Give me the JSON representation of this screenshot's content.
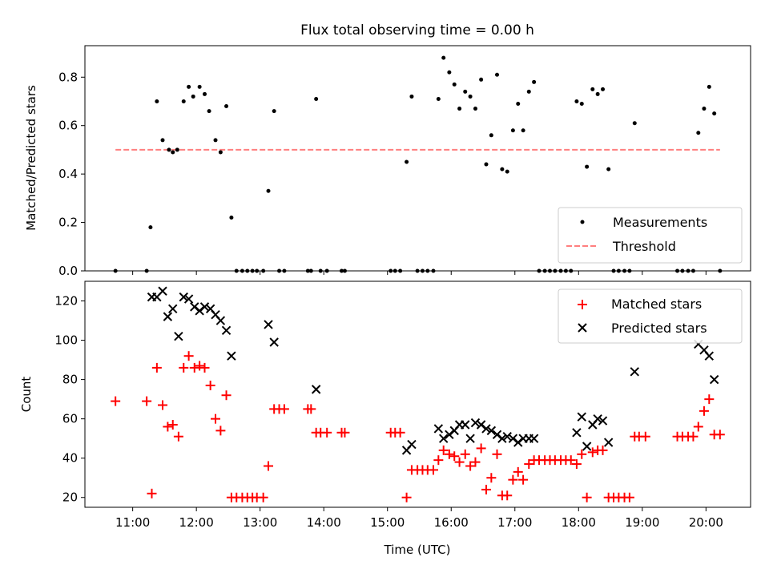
{
  "chart_data": [
    {
      "type": "scatter",
      "title": "Flux total observing time = 0.00 h",
      "ylabel": "Matched/Predicted stars",
      "xlabel": "",
      "ylim": [
        0,
        0.93
      ],
      "yticks": [
        "0.0",
        "0.2",
        "0.4",
        "0.6",
        "0.8"
      ],
      "ytick_values": [
        0,
        0.2,
        0.4,
        0.6,
        0.8
      ],
      "legend": {
        "placement": "lower-right",
        "entries": [
          "Measurements",
          "Threshold"
        ]
      },
      "threshold": {
        "name": "Threshold",
        "value": 0.5,
        "x_range": [
          10.73,
          20.22
        ],
        "color": "#ff7f7f"
      },
      "series": [
        {
          "name": "Measurements",
          "color": "#000000",
          "points": [
            [
              10.73,
              0
            ],
            [
              11.22,
              0
            ],
            [
              11.28,
              0.18
            ],
            [
              11.38,
              0.7
            ],
            [
              11.47,
              0.54
            ],
            [
              11.57,
              0.5
            ],
            [
              11.63,
              0.49
            ],
            [
              11.7,
              0.5
            ],
            [
              11.8,
              0.7
            ],
            [
              11.88,
              0.76
            ],
            [
              11.95,
              0.72
            ],
            [
              12.05,
              0.76
            ],
            [
              12.13,
              0.73
            ],
            [
              12.2,
              0.66
            ],
            [
              12.3,
              0.54
            ],
            [
              12.38,
              0.49
            ],
            [
              12.47,
              0.68
            ],
            [
              12.55,
              0.22
            ],
            [
              12.63,
              0
            ],
            [
              12.72,
              0
            ],
            [
              12.8,
              0
            ],
            [
              12.88,
              0
            ],
            [
              12.95,
              0
            ],
            [
              13.05,
              0
            ],
            [
              13.13,
              0.33
            ],
            [
              13.22,
              0.66
            ],
            [
              13.3,
              0
            ],
            [
              13.38,
              0
            ],
            [
              13.75,
              0
            ],
            [
              13.8,
              0
            ],
            [
              13.88,
              0.71
            ],
            [
              13.95,
              0
            ],
            [
              14.05,
              0
            ],
            [
              14.28,
              0
            ],
            [
              14.33,
              0
            ],
            [
              15.05,
              0
            ],
            [
              15.12,
              0
            ],
            [
              15.2,
              0
            ],
            [
              15.3,
              0.45
            ],
            [
              15.38,
              0.72
            ],
            [
              15.47,
              0
            ],
            [
              15.55,
              0
            ],
            [
              15.63,
              0
            ],
            [
              15.72,
              0
            ],
            [
              15.8,
              0.71
            ],
            [
              15.88,
              0.88
            ],
            [
              15.97,
              0.82
            ],
            [
              16.05,
              0.77
            ],
            [
              16.13,
              0.67
            ],
            [
              16.22,
              0.74
            ],
            [
              16.3,
              0.72
            ],
            [
              16.38,
              0.67
            ],
            [
              16.47,
              0.79
            ],
            [
              16.55,
              0.44
            ],
            [
              16.63,
              0.56
            ],
            [
              16.72,
              0.81
            ],
            [
              16.8,
              0.42
            ],
            [
              16.88,
              0.41
            ],
            [
              16.97,
              0.58
            ],
            [
              17.05,
              0.69
            ],
            [
              17.13,
              0.58
            ],
            [
              17.22,
              0.74
            ],
            [
              17.3,
              0.78
            ],
            [
              17.38,
              0
            ],
            [
              17.47,
              0
            ],
            [
              17.55,
              0
            ],
            [
              17.63,
              0
            ],
            [
              17.72,
              0
            ],
            [
              17.8,
              0
            ],
            [
              17.88,
              0
            ],
            [
              17.97,
              0.7
            ],
            [
              18.05,
              0.69
            ],
            [
              18.13,
              0.43
            ],
            [
              18.22,
              0.75
            ],
            [
              18.3,
              0.73
            ],
            [
              18.38,
              0.75
            ],
            [
              18.47,
              0.42
            ],
            [
              18.55,
              0
            ],
            [
              18.63,
              0
            ],
            [
              18.72,
              0
            ],
            [
              18.8,
              0
            ],
            [
              18.88,
              0.61
            ],
            [
              19.55,
              0
            ],
            [
              19.63,
              0
            ],
            [
              19.72,
              0
            ],
            [
              19.8,
              0
            ],
            [
              19.88,
              0.57
            ],
            [
              19.97,
              0.67
            ],
            [
              20.05,
              0.76
            ],
            [
              20.13,
              0.65
            ],
            [
              20.22,
              0
            ]
          ]
        }
      ]
    },
    {
      "type": "scatter",
      "title": "",
      "ylabel": "Count",
      "xlabel": "Time (UTC)",
      "ylim": [
        15,
        130
      ],
      "yticks": [
        "20",
        "40",
        "60",
        "80",
        "100",
        "120"
      ],
      "ytick_values": [
        20,
        40,
        60,
        80,
        100,
        120
      ],
      "xticks": [
        "11:00",
        "12:00",
        "13:00",
        "14:00",
        "15:00",
        "16:00",
        "17:00",
        "18:00",
        "19:00",
        "20:00"
      ],
      "xtick_values": [
        11,
        12,
        13,
        14,
        15,
        16,
        17,
        18,
        19,
        20
      ],
      "xlim": [
        10.25,
        20.7
      ],
      "legend": {
        "placement": "upper-right",
        "entries": [
          "Matched stars",
          "Predicted stars"
        ]
      },
      "series": [
        {
          "name": "Matched stars",
          "color": "#ff0000",
          "marker": "+",
          "points": [
            [
              10.73,
              69
            ],
            [
              11.22,
              69
            ],
            [
              11.3,
              22
            ],
            [
              11.38,
              86
            ],
            [
              11.47,
              67
            ],
            [
              11.55,
              56
            ],
            [
              11.63,
              57
            ],
            [
              11.72,
              51
            ],
            [
              11.8,
              86
            ],
            [
              11.88,
              92
            ],
            [
              11.97,
              86
            ],
            [
              12.05,
              87
            ],
            [
              12.13,
              86
            ],
            [
              12.22,
              77
            ],
            [
              12.3,
              60
            ],
            [
              12.38,
              54
            ],
            [
              12.47,
              72
            ],
            [
              12.55,
              20
            ],
            [
              12.63,
              20
            ],
            [
              12.72,
              20
            ],
            [
              12.8,
              20
            ],
            [
              12.88,
              20
            ],
            [
              12.95,
              20
            ],
            [
              13.05,
              20
            ],
            [
              13.13,
              36
            ],
            [
              13.22,
              65
            ],
            [
              13.3,
              65
            ],
            [
              13.38,
              65
            ],
            [
              13.75,
              65
            ],
            [
              13.8,
              65
            ],
            [
              13.88,
              53
            ],
            [
              13.95,
              53
            ],
            [
              14.05,
              53
            ],
            [
              14.28,
              53
            ],
            [
              14.33,
              53
            ],
            [
              15.05,
              53
            ],
            [
              15.12,
              53
            ],
            [
              15.2,
              53
            ],
            [
              15.3,
              20
            ],
            [
              15.38,
              34
            ],
            [
              15.47,
              34
            ],
            [
              15.55,
              34
            ],
            [
              15.63,
              34
            ],
            [
              15.72,
              34
            ],
            [
              15.8,
              39
            ],
            [
              15.88,
              44
            ],
            [
              15.97,
              42
            ],
            [
              16.05,
              41
            ],
            [
              16.13,
              38
            ],
            [
              16.22,
              42
            ],
            [
              16.3,
              36
            ],
            [
              16.38,
              38
            ],
            [
              16.47,
              45
            ],
            [
              16.55,
              24
            ],
            [
              16.63,
              30
            ],
            [
              16.72,
              42
            ],
            [
              16.8,
              21
            ],
            [
              16.88,
              21
            ],
            [
              16.97,
              29
            ],
            [
              17.05,
              33
            ],
            [
              17.13,
              29
            ],
            [
              17.22,
              37
            ],
            [
              17.3,
              39
            ],
            [
              17.38,
              39
            ],
            [
              17.47,
              39
            ],
            [
              17.55,
              39
            ],
            [
              17.63,
              39
            ],
            [
              17.72,
              39
            ],
            [
              17.8,
              39
            ],
            [
              17.88,
              39
            ],
            [
              17.97,
              37
            ],
            [
              18.05,
              42
            ],
            [
              18.13,
              20
            ],
            [
              18.22,
              43
            ],
            [
              18.3,
              44
            ],
            [
              18.38,
              44
            ],
            [
              18.47,
              20
            ],
            [
              18.55,
              20
            ],
            [
              18.63,
              20
            ],
            [
              18.72,
              20
            ],
            [
              18.8,
              20
            ],
            [
              18.88,
              51
            ],
            [
              18.95,
              51
            ],
            [
              19.05,
              51
            ],
            [
              19.55,
              51
            ],
            [
              19.63,
              51
            ],
            [
              19.72,
              51
            ],
            [
              19.8,
              51
            ],
            [
              19.88,
              56
            ],
            [
              19.97,
              64
            ],
            [
              20.05,
              70
            ],
            [
              20.13,
              52
            ],
            [
              20.22,
              52
            ]
          ]
        },
        {
          "name": "Predicted stars",
          "color": "#000000",
          "marker": "x",
          "points": [
            [
              11.3,
              122
            ],
            [
              11.38,
              122
            ],
            [
              11.47,
              125
            ],
            [
              11.55,
              112
            ],
            [
              11.63,
              116
            ],
            [
              11.72,
              102
            ],
            [
              11.8,
              122
            ],
            [
              11.88,
              121
            ],
            [
              11.97,
              117
            ],
            [
              12.05,
              115
            ],
            [
              12.13,
              117
            ],
            [
              12.22,
              116
            ],
            [
              12.3,
              113
            ],
            [
              12.38,
              110
            ],
            [
              12.47,
              105
            ],
            [
              12.55,
              92
            ],
            [
              13.13,
              108
            ],
            [
              13.22,
              99
            ],
            [
              13.88,
              75
            ],
            [
              15.3,
              44
            ],
            [
              15.38,
              47
            ],
            [
              15.8,
              55
            ],
            [
              15.88,
              50
            ],
            [
              15.97,
              52
            ],
            [
              16.05,
              54
            ],
            [
              16.13,
              57
            ],
            [
              16.22,
              57
            ],
            [
              16.3,
              50
            ],
            [
              16.38,
              58
            ],
            [
              16.47,
              57
            ],
            [
              16.55,
              55
            ],
            [
              16.63,
              54
            ],
            [
              16.72,
              52
            ],
            [
              16.8,
              50
            ],
            [
              16.88,
              51
            ],
            [
              16.97,
              50
            ],
            [
              17.05,
              48
            ],
            [
              17.13,
              50
            ],
            [
              17.22,
              50
            ],
            [
              17.3,
              50
            ],
            [
              17.97,
              53
            ],
            [
              18.05,
              61
            ],
            [
              18.13,
              46
            ],
            [
              18.22,
              57
            ],
            [
              18.3,
              60
            ],
            [
              18.38,
              59
            ],
            [
              18.47,
              48
            ],
            [
              18.88,
              84
            ],
            [
              19.88,
              98
            ],
            [
              19.97,
              95
            ],
            [
              20.05,
              92
            ],
            [
              20.13,
              80
            ]
          ]
        }
      ]
    }
  ]
}
